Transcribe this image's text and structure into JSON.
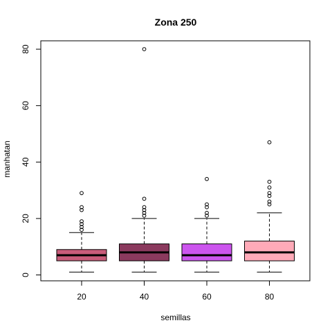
{
  "chart_data": {
    "type": "boxplot",
    "title": "Zona 250",
    "xlabel": "semillas",
    "ylabel": "manhatan",
    "ylim": [
      -2,
      82
    ],
    "y_ticks": [
      0,
      20,
      40,
      60,
      80
    ],
    "grid": false,
    "categories": [
      "20",
      "40",
      "60",
      "80"
    ],
    "boxes": [
      {
        "category": "20",
        "color": "#C85C7A",
        "whisker_low": 1,
        "q1": 5,
        "median": 7,
        "q3": 9,
        "whisker_high": 15,
        "outliers": [
          16,
          17,
          18,
          19,
          23,
          24,
          29
        ]
      },
      {
        "category": "40",
        "color": "#8B3A5E",
        "whisker_low": 1,
        "q1": 5,
        "median": 8,
        "q3": 11,
        "whisker_high": 20,
        "outliers": [
          21,
          22,
          23,
          24,
          27,
          80
        ]
      },
      {
        "category": "60",
        "color": "#CC55EE",
        "whisker_low": 1,
        "q1": 5,
        "median": 7,
        "q3": 11,
        "whisker_high": 20,
        "outliers": [
          21,
          22,
          24,
          25,
          34
        ]
      },
      {
        "category": "80",
        "color": "#FFAAB8",
        "whisker_low": 1,
        "q1": 5,
        "median": 8,
        "q3": 12,
        "whisker_high": 22,
        "outliers": [
          25,
          26,
          28,
          29,
          31,
          33,
          47
        ]
      }
    ]
  }
}
